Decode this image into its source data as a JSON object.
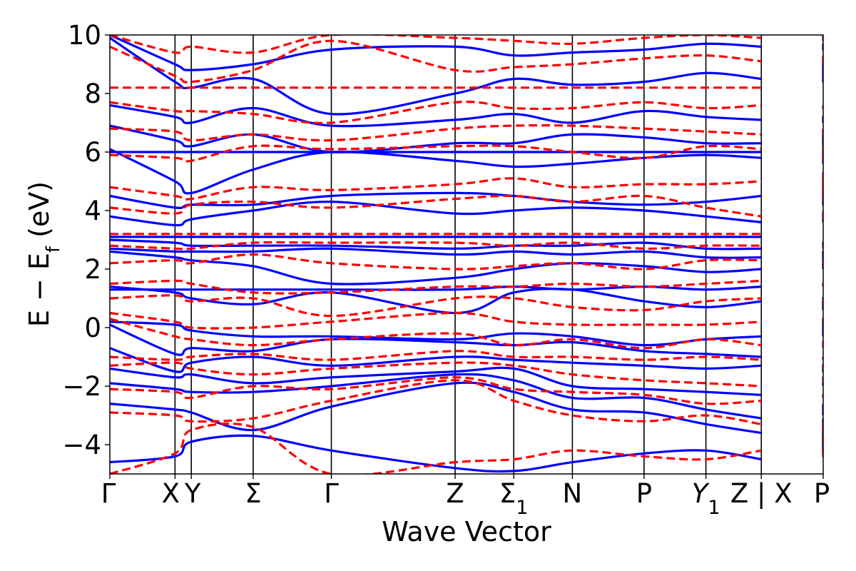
{
  "chart_data": {
    "type": "line",
    "xlabel": "Wave Vector",
    "ylabel": "E − E",
    "ylabel_sub": "f",
    "ylabel_unit": "(eV)",
    "ylim": [
      -5,
      10
    ],
    "yticks": [
      -4,
      -2,
      0,
      2,
      4,
      6,
      8,
      10
    ],
    "grid": false,
    "legend": "none",
    "high_symmetry_points": [
      {
        "label": "Γ",
        "x": 0.0
      },
      {
        "label": "X",
        "x": 1.0
      },
      {
        "label": "Y",
        "x": 1.25
      },
      {
        "label": "Σ",
        "x": 2.2
      },
      {
        "label": "Γ",
        "x": 3.4
      },
      {
        "label": "Z",
        "x": 5.3
      },
      {
        "label": "Σ",
        "sub": "1",
        "x": 6.2
      },
      {
        "label": "N",
        "x": 7.1
      },
      {
        "label": "P",
        "x": 8.2
      },
      {
        "label": "Y",
        "sub": "1",
        "italic": true,
        "x": 9.15
      },
      {
        "label": "Z | X",
        "x": 10.0
      },
      {
        "label": "P",
        "x": 10.95
      }
    ],
    "path_break": {
      "label": "Z | X",
      "x": 10.0
    },
    "series": [
      {
        "style": "solid",
        "color": "#0000ff",
        "bands": [
          [
            -4.6,
            -4.4,
            -3.9,
            -3.7,
            -4.2,
            -4.8,
            -4.9,
            -4.6,
            -4.3,
            -4.2,
            -4.5,
            -4.2,
            -4.0,
            -3.6
          ],
          [
            -2.6,
            -2.8,
            -2.9,
            -3.5,
            -2.7,
            -1.9,
            -2.2,
            -2.8,
            -2.9,
            -3.3,
            -3.6,
            -4.3,
            -4.1,
            -3.1
          ],
          [
            -1.9,
            -2.1,
            -2.2,
            -2.2,
            -2.0,
            -1.6,
            -1.8,
            -2.4,
            -2.4,
            -2.8,
            -3.1,
            -3.0,
            -2.9,
            -2.6
          ],
          [
            -1.4,
            -1.7,
            -1.6,
            -1.9,
            -1.7,
            -1.5,
            -1.4,
            -2.0,
            -2.1,
            -2.2,
            -2.3,
            -2.0,
            -1.9,
            -1.9
          ],
          [
            -0.7,
            -1.5,
            -1.2,
            -1.0,
            -1.3,
            -1.0,
            -1.1,
            -1.2,
            -1.3,
            -1.4,
            -1.3,
            -1.3,
            -1.5,
            -1.4
          ],
          [
            0.1,
            -0.9,
            -0.7,
            -0.8,
            -0.4,
            -0.5,
            -0.6,
            -0.5,
            -0.8,
            -0.9,
            -1.0,
            -1.0,
            -1.1,
            -1.0
          ],
          [
            0.2,
            0.1,
            -0.1,
            -0.3,
            -0.3,
            -0.4,
            -0.2,
            -0.3,
            -0.6,
            -0.4,
            -0.3,
            -0.1,
            0.3,
            -0.3
          ],
          [
            1.4,
            1.2,
            1.0,
            0.8,
            1.2,
            0.5,
            1.2,
            1.3,
            0.9,
            0.7,
            0.9,
            0.6,
            1.0,
            0.9
          ],
          [
            1.3,
            1.3,
            1.3,
            1.3,
            1.3,
            1.3,
            1.4,
            1.3,
            1.4,
            1.3,
            1.4,
            1.3,
            1.3,
            1.3
          ],
          [
            2.6,
            2.4,
            2.3,
            2.1,
            1.5,
            1.7,
            2.0,
            2.2,
            2.1,
            1.9,
            2.0,
            2.0,
            2.2,
            2.0
          ],
          [
            2.7,
            2.6,
            2.6,
            2.6,
            2.7,
            2.5,
            2.6,
            2.5,
            2.6,
            2.4,
            2.4,
            2.3,
            2.6,
            2.4
          ],
          [
            3.0,
            2.9,
            2.8,
            2.8,
            2.8,
            2.7,
            2.8,
            2.8,
            2.9,
            2.7,
            2.7,
            2.8,
            2.9,
            2.7
          ],
          [
            3.1,
            3.1,
            3.1,
            3.1,
            3.1,
            3.1,
            3.1,
            3.1,
            3.1,
            3.1,
            3.1,
            3.1,
            3.1,
            3.1
          ],
          [
            3.8,
            3.5,
            3.7,
            4.0,
            4.3,
            3.9,
            4.0,
            4.1,
            4.0,
            3.8,
            3.6,
            3.6,
            3.8,
            3.6
          ],
          [
            4.5,
            4.1,
            4.2,
            4.2,
            4.5,
            4.6,
            4.5,
            4.3,
            4.2,
            4.3,
            4.5,
            4.6,
            4.2,
            4.8
          ],
          [
            6.0,
            6.0,
            6.0,
            6.0,
            6.0,
            6.0,
            6.0,
            6.0,
            6.0,
            6.0,
            6.0,
            6.0,
            6.0,
            6.0
          ],
          [
            6.1,
            5.0,
            4.6,
            5.4,
            6.0,
            5.7,
            5.5,
            5.6,
            5.8,
            5.9,
            5.8,
            5.6,
            6.0,
            5.9
          ],
          [
            6.9,
            6.4,
            6.2,
            6.6,
            6.0,
            6.3,
            6.3,
            6.6,
            6.5,
            6.3,
            6.3,
            6.2,
            6.4,
            6.7
          ],
          [
            7.6,
            7.2,
            7.0,
            7.5,
            6.9,
            7.1,
            7.3,
            7.0,
            7.4,
            7.2,
            7.1,
            7.0,
            7.2,
            7.2
          ],
          [
            9.9,
            8.4,
            8.2,
            8.5,
            7.3,
            8.0,
            8.5,
            8.3,
            8.4,
            8.7,
            8.5,
            8.4,
            8.5,
            9.2
          ],
          [
            10.0,
            9.0,
            8.8,
            9.0,
            9.5,
            9.6,
            9.3,
            9.4,
            9.5,
            9.7,
            9.6,
            9.6,
            9.5,
            9.7
          ]
        ]
      },
      {
        "style": "dashed",
        "color": "#ff0000",
        "bands": [
          [
            -5.0,
            -4.3,
            -3.5,
            -3.4,
            -5.0,
            -4.6,
            -4.5,
            -4.2,
            -4.4,
            -4.5,
            -4.2,
            -4.4,
            -4.3,
            -3.4
          ],
          [
            -2.9,
            -3.0,
            -3.2,
            -3.1,
            -2.5,
            -1.8,
            -2.5,
            -3.0,
            -3.2,
            -3.0,
            -3.3,
            -4.1,
            -4.2,
            -3.3
          ],
          [
            -2.1,
            -2.2,
            -2.4,
            -2.0,
            -2.1,
            -1.7,
            -2.1,
            -2.2,
            -2.3,
            -2.6,
            -2.5,
            -2.4,
            -2.3,
            -2.3
          ],
          [
            -1.3,
            -1.2,
            -1.4,
            -1.6,
            -1.4,
            -1.2,
            -1.3,
            -1.6,
            -1.8,
            -1.9,
            -2.0,
            -1.8,
            -1.7,
            -1.9
          ],
          [
            -1.0,
            -1.1,
            -1.0,
            -0.9,
            -1.1,
            -0.8,
            -1.0,
            -1.0,
            -1.1,
            -1.0,
            -1.1,
            -1.3,
            -1.4,
            -1.0
          ],
          [
            0.3,
            -0.3,
            -0.4,
            -0.6,
            -0.4,
            -0.2,
            -0.6,
            -0.4,
            -0.7,
            -0.4,
            -0.6,
            -0.5,
            -0.5,
            -0.7
          ],
          [
            0.5,
            0.2,
            0.0,
            0.0,
            0.2,
            0.5,
            0.2,
            0.1,
            0.1,
            0.1,
            0.2,
            0.2,
            0.3,
            0.3
          ],
          [
            1.0,
            1.1,
            0.9,
            1.0,
            0.4,
            1.0,
            1.0,
            0.7,
            0.6,
            0.9,
            1.0,
            0.8,
            1.0,
            0.8
          ],
          [
            1.5,
            1.6,
            1.5,
            1.2,
            1.2,
            1.4,
            1.4,
            1.5,
            1.4,
            1.5,
            1.6,
            1.5,
            1.5,
            1.4
          ],
          [
            2.2,
            2.3,
            2.2,
            2.5,
            2.2,
            2.0,
            2.1,
            2.2,
            2.0,
            2.3,
            2.3,
            2.3,
            2.2,
            2.2
          ],
          [
            2.8,
            2.7,
            2.7,
            2.9,
            2.9,
            2.9,
            2.8,
            2.9,
            2.7,
            2.8,
            2.8,
            2.8,
            2.8,
            2.7
          ],
          [
            3.2,
            3.2,
            3.2,
            3.2,
            3.2,
            3.2,
            3.2,
            3.2,
            3.2,
            3.2,
            3.2,
            3.2,
            3.2,
            3.2
          ],
          [
            4.1,
            3.9,
            4.2,
            4.3,
            4.1,
            4.4,
            4.5,
            4.3,
            4.5,
            4.1,
            3.8,
            3.7,
            4.0,
            3.7
          ],
          [
            4.8,
            4.5,
            4.4,
            4.8,
            4.7,
            4.9,
            5.1,
            4.8,
            4.9,
            4.9,
            5.0,
            5.1,
            4.4,
            5.4
          ],
          [
            5.9,
            5.8,
            5.7,
            6.2,
            6.1,
            6.2,
            6.2,
            6.0,
            5.8,
            6.2,
            6.1,
            6.0,
            5.8,
            6.2
          ],
          [
            6.8,
            6.7,
            6.4,
            6.6,
            6.4,
            6.8,
            6.9,
            6.9,
            6.8,
            6.7,
            6.6,
            6.5,
            6.6,
            6.8
          ],
          [
            7.7,
            7.4,
            7.4,
            7.3,
            7.0,
            7.7,
            7.5,
            7.5,
            7.7,
            7.5,
            7.6,
            7.5,
            7.5,
            7.6
          ],
          [
            8.2,
            8.2,
            8.2,
            8.2,
            8.2,
            8.2,
            8.2,
            8.2,
            8.2,
            8.2,
            8.2,
            8.2,
            8.2,
            8.2
          ],
          [
            9.6,
            8.6,
            8.4,
            8.8,
            9.8,
            8.8,
            8.9,
            9.0,
            9.2,
            9.3,
            9.1,
            9.0,
            9.1,
            9.4
          ],
          [
            10.0,
            9.4,
            9.6,
            9.4,
            10.0,
            9.9,
            9.8,
            9.7,
            9.9,
            10.0,
            9.9,
            9.8,
            9.9,
            10.0
          ]
        ]
      }
    ]
  }
}
